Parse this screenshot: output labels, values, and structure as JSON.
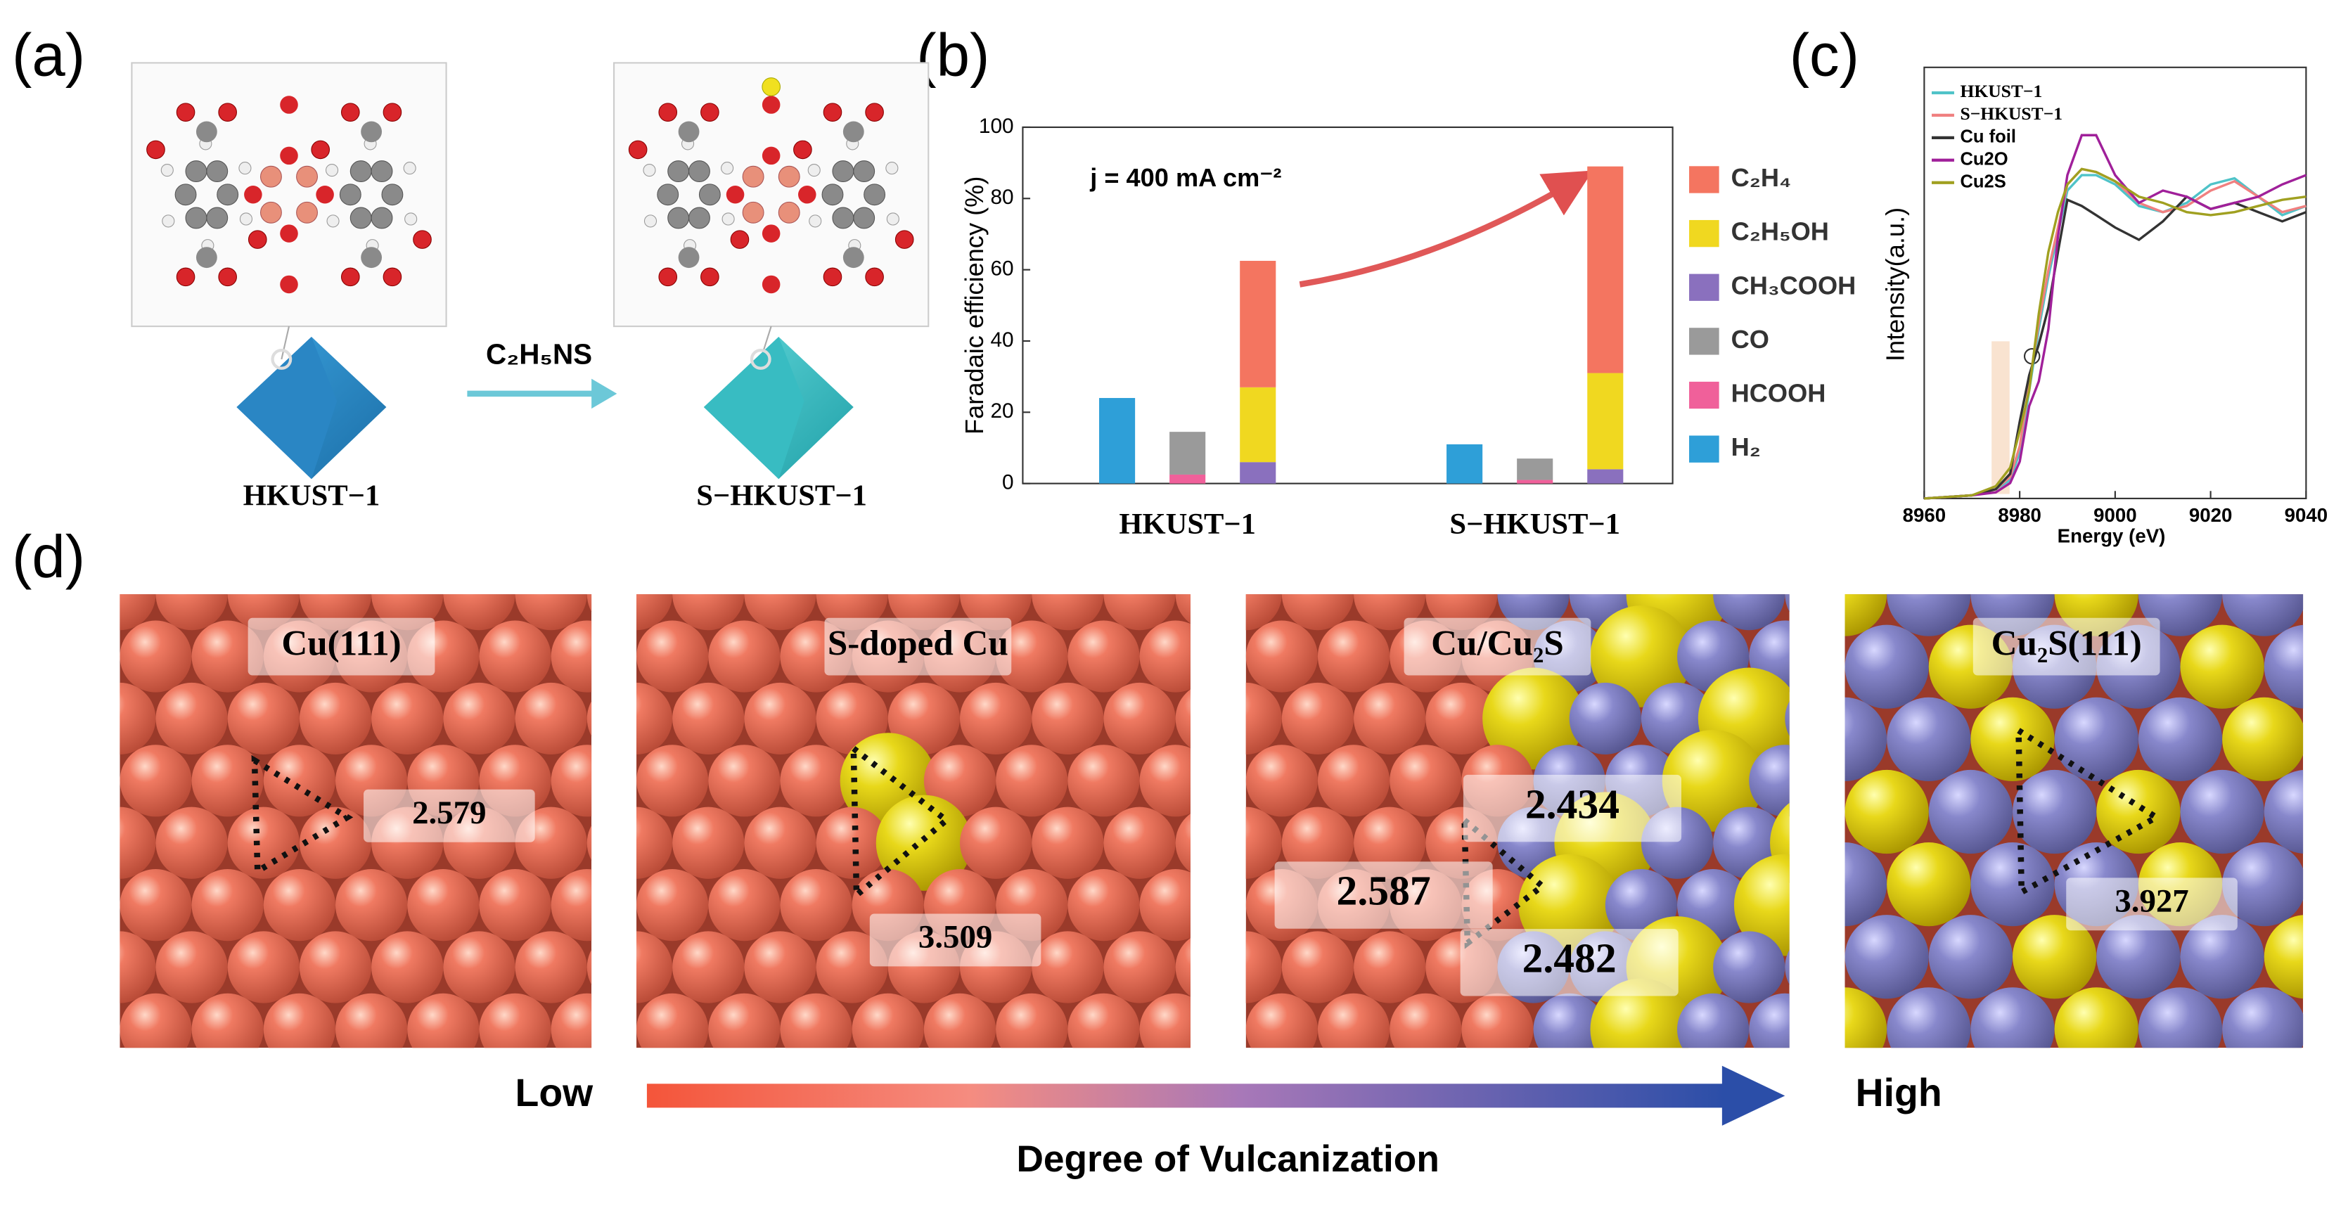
{
  "panel_labels": [
    "(a)",
    "(b)",
    "(c)",
    "(d)"
  ],
  "panel_a": {
    "reagent": "C₂H₅NS",
    "labels": [
      "HKUST−1",
      "S−HKUST−1"
    ]
  },
  "chart_data": [
    {
      "type": "bar",
      "annotation": "j = 400 mA cm⁻²",
      "y_label": "Faradaic efficiency (%)",
      "categories": [
        "HKUST−1",
        "S−HKUST−1"
      ],
      "ylim": [
        0,
        100
      ],
      "yticks": [
        0,
        20,
        40,
        60,
        80,
        100
      ],
      "series": [
        {
          "name": "C₂H₄",
          "color": "#f47560",
          "values": [
            35.5,
            58
          ]
        },
        {
          "name": "C₂H₅OH",
          "color": "#f0d820",
          "values": [
            21,
            27
          ]
        },
        {
          "name": "CH₃COOH",
          "color": "#8a70be",
          "values": [
            6,
            4
          ]
        },
        {
          "name": "CO",
          "color": "#9a9a9a",
          "values": [
            12,
            6
          ]
        },
        {
          "name": "HCOOH",
          "color": "#f0609a",
          "values": [
            2.5,
            1
          ]
        },
        {
          "name": "H₂",
          "color": "#2e9fd8",
          "values": [
            24,
            11
          ]
        }
      ]
    },
    {
      "type": "line",
      "x_label": "Energy (eV)",
      "y_label": "Intensity(a.u.)",
      "xlim": [
        8960,
        9040
      ],
      "xticks": [
        8960,
        8980,
        9000,
        9020,
        9040
      ],
      "ylim": [
        0,
        1.4
      ],
      "x": [
        8960,
        8970,
        8975,
        8978,
        8980,
        8982,
        8984,
        8986,
        8988,
        8990,
        8993,
        8996,
        9000,
        9005,
        9010,
        9015,
        9020,
        9025,
        9030,
        9035,
        9040
      ],
      "series": [
        {
          "name": "HKUST−1",
          "color": "#4fc3c8",
          "values": [
            0,
            0.01,
            0.03,
            0.06,
            0.15,
            0.35,
            0.55,
            0.72,
            0.86,
            1.0,
            1.05,
            1.05,
            1.02,
            0.95,
            0.93,
            0.96,
            1.02,
            1.04,
            0.98,
            0.92,
            0.95
          ]
        },
        {
          "name": "S−HKUST−1",
          "color": "#f08080",
          "values": [
            0,
            0.01,
            0.03,
            0.07,
            0.17,
            0.37,
            0.57,
            0.74,
            0.88,
            1.02,
            1.07,
            1.06,
            1.03,
            0.96,
            0.93,
            0.95,
            1.0,
            1.03,
            0.98,
            0.93,
            0.95
          ]
        },
        {
          "name": "Cu foil",
          "color": "#333333",
          "values": [
            0,
            0.01,
            0.03,
            0.08,
            0.25,
            0.4,
            0.5,
            0.62,
            0.8,
            0.97,
            0.95,
            0.92,
            0.88,
            0.84,
            0.9,
            0.98,
            0.94,
            0.96,
            0.93,
            0.9,
            0.93
          ]
        },
        {
          "name": "Cu2O",
          "color": "#a0209a",
          "values": [
            0,
            0.01,
            0.02,
            0.05,
            0.12,
            0.3,
            0.38,
            0.55,
            0.85,
            1.05,
            1.18,
            1.18,
            1.05,
            0.96,
            1.0,
            0.98,
            0.94,
            0.96,
            0.98,
            1.02,
            1.05
          ]
        },
        {
          "name": "Cu2S",
          "color": "#a0a020",
          "values": [
            0,
            0.01,
            0.04,
            0.1,
            0.22,
            0.35,
            0.6,
            0.8,
            0.93,
            1.02,
            1.07,
            1.06,
            1.03,
            0.98,
            0.96,
            0.93,
            0.92,
            0.93,
            0.95,
            0.97,
            0.98
          ]
        }
      ]
    }
  ],
  "panel_d": {
    "titles": [
      "Cu(111)",
      "S-doped Cu",
      "Cu/Cu₂S",
      "Cu₂S(111)"
    ],
    "distances": [
      "2.579",
      "3.509",
      "2.434",
      "2.587",
      "2.482",
      "3.927"
    ],
    "low": "Low",
    "high": "High",
    "axis_label": "Degree of Vulcanization"
  }
}
